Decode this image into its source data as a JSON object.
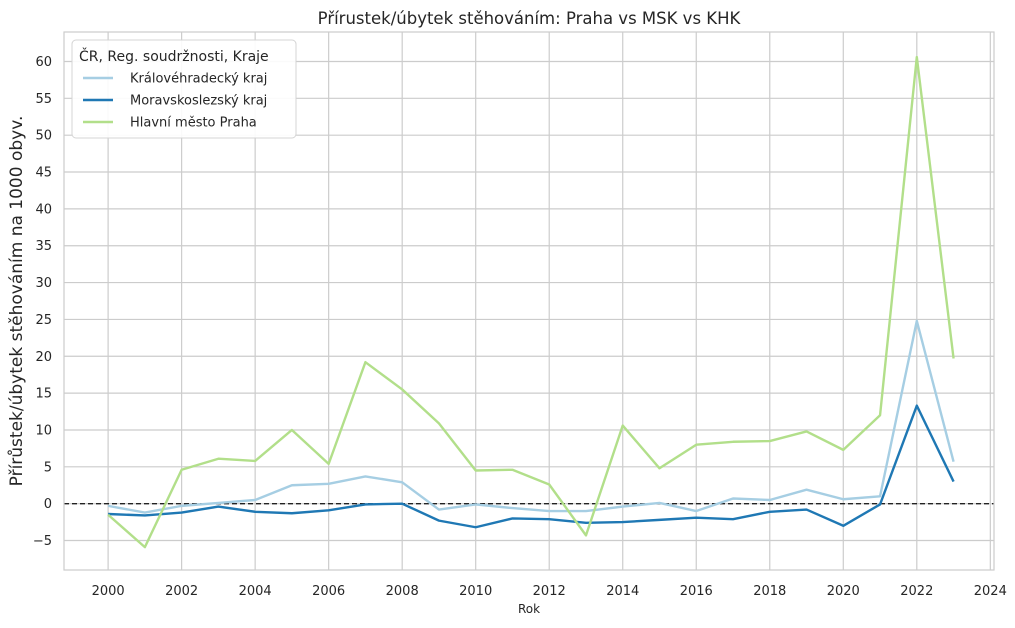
{
  "chart_data": {
    "type": "line",
    "title": "Přírustek/úbytek stěhováním: Praha vs MSK vs KHK",
    "xlabel": "Rok",
    "ylabel": "Přírůstek/úbytek stěhováním na 1000 obyv.",
    "xlim": [
      1998.8,
      2024.1
    ],
    "ylim": [
      -9,
      64
    ],
    "x_ticks": [
      2000,
      2002,
      2004,
      2006,
      2008,
      2010,
      2012,
      2014,
      2016,
      2018,
      2020,
      2022,
      2024
    ],
    "y_ticks": [
      -5,
      0,
      5,
      10,
      15,
      20,
      25,
      30,
      35,
      40,
      45,
      50,
      55,
      60
    ],
    "grid": true,
    "reference_line": {
      "y": 0,
      "style": "dashed",
      "color": "#222222"
    },
    "legend": {
      "title": "ČR, Reg. soudržnosti, Kraje",
      "placement": "top-left"
    },
    "x": [
      2000,
      2001,
      2002,
      2003,
      2004,
      2005,
      2006,
      2007,
      2008,
      2009,
      2010,
      2011,
      2012,
      2013,
      2014,
      2015,
      2016,
      2017,
      2018,
      2019,
      2020,
      2021,
      2022,
      2023
    ],
    "series": [
      {
        "name": "Královéhradecký kraj",
        "color": "#a6cee3",
        "values": [
          -0.3,
          -1.2,
          -0.3,
          0.1,
          0.5,
          2.5,
          2.7,
          3.7,
          2.9,
          -0.8,
          -0.1,
          -0.6,
          -1.0,
          -1.0,
          -0.4,
          0.1,
          -1.0,
          0.7,
          0.5,
          1.9,
          0.6,
          1.0,
          24.8,
          5.7
        ]
      },
      {
        "name": "Moravskoslezský kraj",
        "color": "#1f78b4",
        "values": [
          -1.4,
          -1.6,
          -1.2,
          -0.4,
          -1.1,
          -1.3,
          -0.9,
          -0.1,
          0.0,
          -2.3,
          -3.2,
          -2.0,
          -2.1,
          -2.6,
          -2.5,
          -2.2,
          -1.9,
          -2.1,
          -1.1,
          -0.8,
          -3.0,
          -0.1,
          13.3,
          3.0
        ]
      },
      {
        "name": "Hlavní město Praha",
        "color": "#b2df8a",
        "values": [
          -1.5,
          -5.9,
          4.6,
          6.1,
          5.8,
          10.0,
          5.4,
          19.2,
          15.5,
          10.9,
          4.5,
          4.6,
          2.6,
          -4.3,
          10.6,
          4.8,
          8.0,
          8.4,
          8.5,
          9.8,
          7.3,
          12.0,
          60.6,
          19.7
        ]
      }
    ]
  }
}
